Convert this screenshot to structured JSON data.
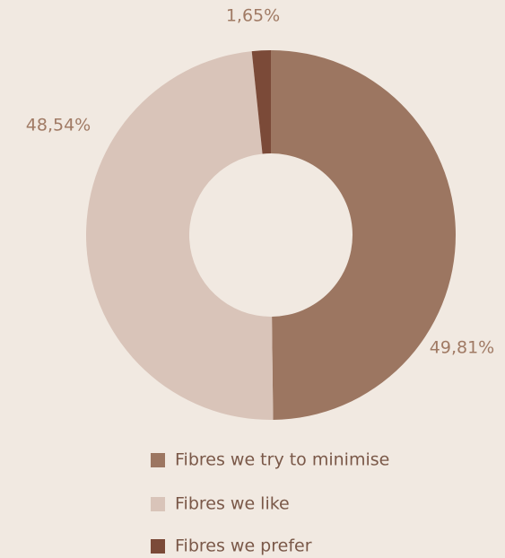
{
  "chart_data": {
    "type": "donut",
    "categories": [
      "Fibres we try to minimise",
      "Fibres we like",
      "Fibres we prefer"
    ],
    "values": [
      49.81,
      48.54,
      1.65
    ],
    "value_labels": [
      "49,81%",
      "48,54%",
      "1,65%"
    ],
    "colors": [
      "#9c7661",
      "#d9c4b9",
      "#7b4a38"
    ]
  }
}
